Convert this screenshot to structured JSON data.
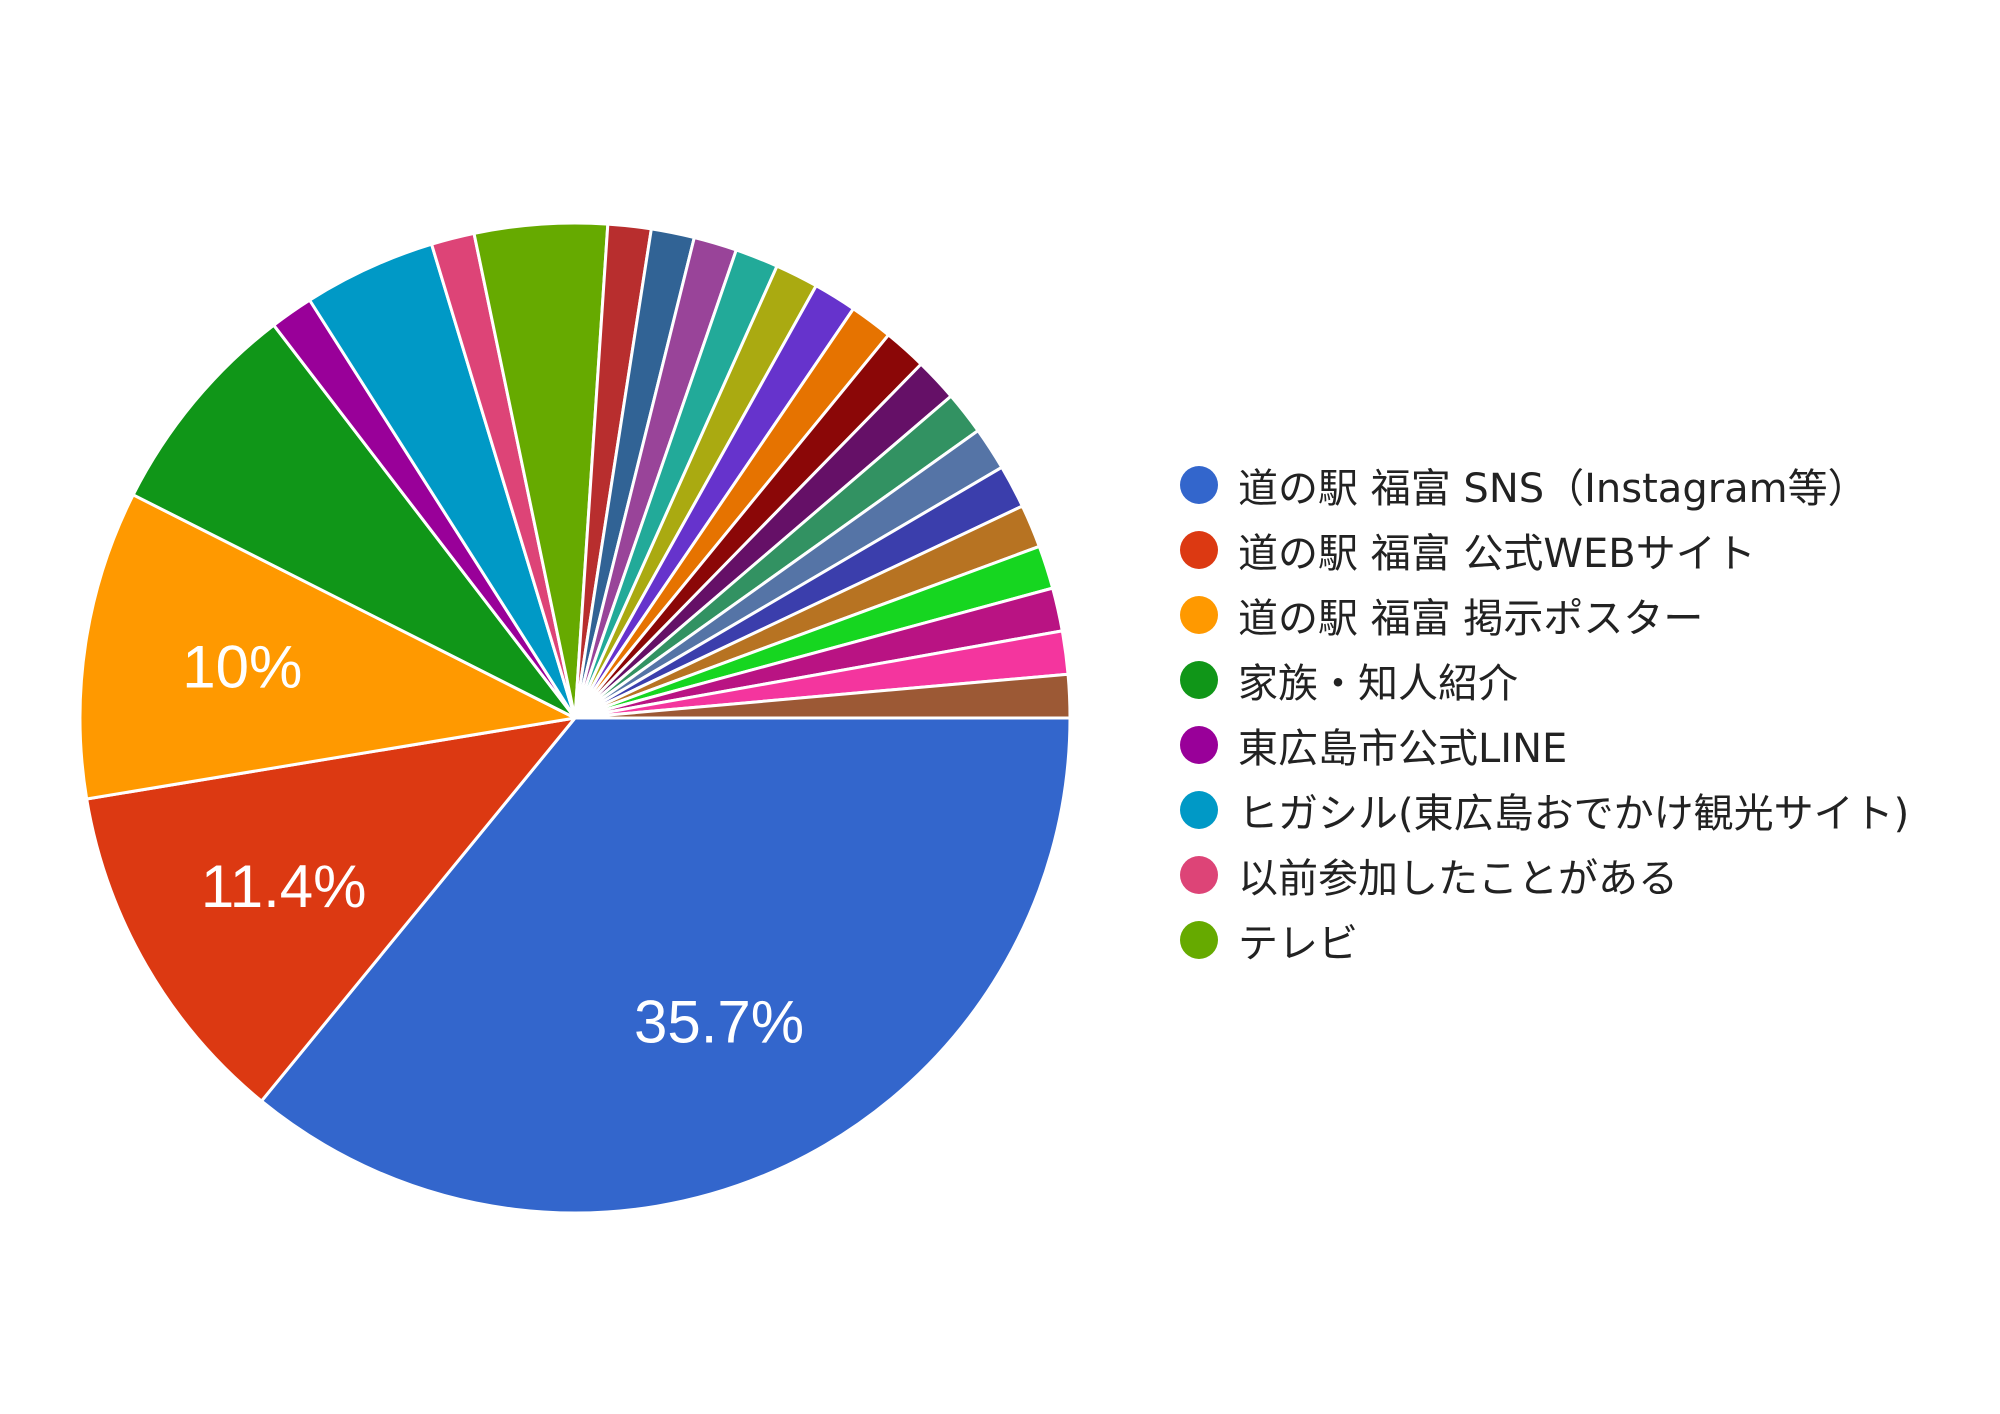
{
  "chart_data": {
    "type": "pie",
    "title": "",
    "legend_position": "right",
    "slices": [
      {
        "label": "道の駅 福富 SNS（Instagram等）",
        "value": 35.7,
        "color": "#3366cc",
        "data_label": "35.7%"
      },
      {
        "label": "道の駅 福富 公式WEBサイト",
        "value": 11.4,
        "color": "#dc3912",
        "data_label": "11.4%"
      },
      {
        "label": "道の駅 福富 掲示ポスター",
        "value": 10.0,
        "color": "#ff9900",
        "data_label": "10%"
      },
      {
        "label": "家族・知人紹介",
        "value": 7.1,
        "color": "#109618",
        "data_label": ""
      },
      {
        "label": "東広島市公式LINE",
        "value": 1.4,
        "color": "#990099",
        "data_label": ""
      },
      {
        "label": "ヒガシル(東広島おでかけ観光サイト)",
        "value": 4.3,
        "color": "#0099c6",
        "data_label": ""
      },
      {
        "label": "以前参加したことがある",
        "value": 1.4,
        "color": "#dd4477",
        "data_label": ""
      },
      {
        "label": "テレビ",
        "value": 4.3,
        "color": "#66aa00",
        "data_label": ""
      },
      {
        "label": "",
        "value": 1.4,
        "color": "#b82e2e",
        "data_label": ""
      },
      {
        "label": "",
        "value": 1.4,
        "color": "#316395",
        "data_label": ""
      },
      {
        "label": "",
        "value": 1.4,
        "color": "#994499",
        "data_label": ""
      },
      {
        "label": "",
        "value": 1.4,
        "color": "#22aa99",
        "data_label": ""
      },
      {
        "label": "",
        "value": 1.4,
        "color": "#aaaa11",
        "data_label": ""
      },
      {
        "label": "",
        "value": 1.4,
        "color": "#6633cc",
        "data_label": ""
      },
      {
        "label": "",
        "value": 1.4,
        "color": "#e67300",
        "data_label": ""
      },
      {
        "label": "",
        "value": 1.4,
        "color": "#8b0707",
        "data_label": ""
      },
      {
        "label": "",
        "value": 1.4,
        "color": "#651067",
        "data_label": ""
      },
      {
        "label": "",
        "value": 1.4,
        "color": "#329262",
        "data_label": ""
      },
      {
        "label": "",
        "value": 1.4,
        "color": "#5574a6",
        "data_label": ""
      },
      {
        "label": "",
        "value": 1.4,
        "color": "#3b3eac",
        "data_label": ""
      },
      {
        "label": "",
        "value": 1.4,
        "color": "#b77322",
        "data_label": ""
      },
      {
        "label": "",
        "value": 1.4,
        "color": "#16d620",
        "data_label": ""
      },
      {
        "label": "",
        "value": 1.4,
        "color": "#b91383",
        "data_label": ""
      },
      {
        "label": "",
        "value": 1.4,
        "color": "#f4359e",
        "data_label": ""
      },
      {
        "label": "",
        "value": 1.4,
        "color": "#9c5935",
        "data_label": ""
      }
    ]
  },
  "legend": [
    {
      "label": "道の駅 福富 SNS（Instagram等）",
      "color": "#3366cc"
    },
    {
      "label": "道の駅 福富 公式WEBサイト",
      "color": "#dc3912"
    },
    {
      "label": "道の駅 福富 掲示ポスター",
      "color": "#ff9900"
    },
    {
      "label": "家族・知人紹介",
      "color": "#109618"
    },
    {
      "label": "東広島市公式LINE",
      "color": "#990099"
    },
    {
      "label": "ヒガシル(東広島おでかけ観光サイト)",
      "color": "#0099c6"
    },
    {
      "label": "以前参加したことがある",
      "color": "#dd4477"
    },
    {
      "label": "テレビ",
      "color": "#66aa00"
    }
  ]
}
